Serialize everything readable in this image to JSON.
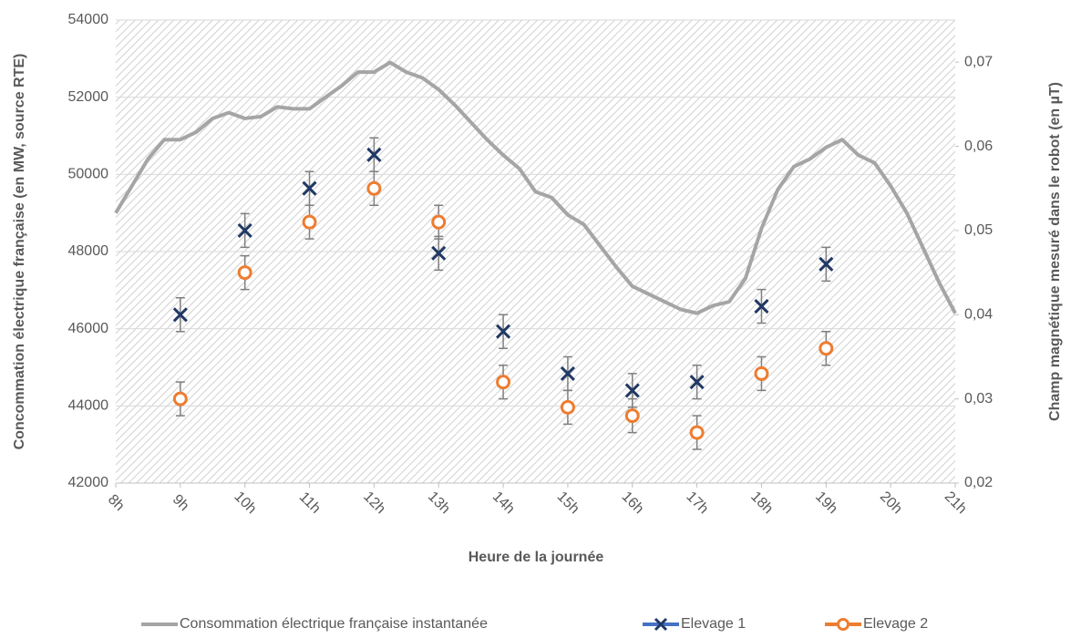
{
  "chart_data": {
    "type": "line_scatter",
    "xlabel": "Heure de la journée",
    "ylabel": "Concommation électrique française (en MW, source RTE)",
    "y2label": "Champ magnétique mesuré dans le robot (en µT)",
    "xlim": [
      8,
      21
    ],
    "xticks": [
      {
        "value": 8,
        "label": "8h"
      },
      {
        "value": 9,
        "label": "9h"
      },
      {
        "value": 10,
        "label": "10h"
      },
      {
        "value": 11,
        "label": "11h"
      },
      {
        "value": 12,
        "label": "12h"
      },
      {
        "value": 13,
        "label": "13h"
      },
      {
        "value": 14,
        "label": "14h"
      },
      {
        "value": 15,
        "label": "15h"
      },
      {
        "value": 16,
        "label": "16h"
      },
      {
        "value": 17,
        "label": "17h"
      },
      {
        "value": 18,
        "label": "18h"
      },
      {
        "value": 19,
        "label": "19h"
      },
      {
        "value": 20,
        "label": "20h"
      },
      {
        "value": 21,
        "label": "21h"
      }
    ],
    "ylim": [
      42000,
      54000
    ],
    "yticks": [
      42000,
      44000,
      46000,
      48000,
      50000,
      52000,
      54000
    ],
    "y2lim": [
      0.02,
      0.075
    ],
    "y2ticks": [
      {
        "value": 0.02,
        "label": "0,02"
      },
      {
        "value": 0.03,
        "label": "0,03"
      },
      {
        "value": 0.04,
        "label": "0,04"
      },
      {
        "value": 0.05,
        "label": "0,05"
      },
      {
        "value": 0.06,
        "label": "0,06"
      },
      {
        "value": 0.07,
        "label": "0,07"
      }
    ],
    "grid": true,
    "legend": "bottom",
    "series": [
      {
        "name": "Consommation électrique française instantanée",
        "color": "#a5a5a5",
        "kind": "line",
        "x": [
          8,
          8.25,
          8.5,
          8.75,
          9,
          9.25,
          9.5,
          9.75,
          10,
          10.25,
          10.5,
          10.75,
          11,
          11.25,
          11.5,
          11.75,
          12,
          12.25,
          12.5,
          12.75,
          13,
          13.25,
          13.5,
          13.75,
          14,
          14.25,
          14.5,
          14.75,
          15,
          15.25,
          15.5,
          15.75,
          16,
          16.25,
          16.5,
          16.75,
          17,
          17.25,
          17.5,
          17.75,
          18,
          18.25,
          18.5,
          18.75,
          19,
          19.25,
          19.5,
          19.75,
          20,
          20.25,
          20.5,
          20.75,
          21
        ],
        "values": [
          49000,
          49700,
          50400,
          50900,
          50900,
          51100,
          51450,
          51600,
          51450,
          51500,
          51750,
          51700,
          51700,
          52000,
          52300,
          52650,
          52650,
          52900,
          52650,
          52500,
          52200,
          51800,
          51350,
          50900,
          50500,
          50150,
          49550,
          49400,
          48950,
          48700,
          48150,
          47600,
          47100,
          46900,
          46700,
          46500,
          46400,
          46600,
          46700,
          47300,
          48600,
          49600,
          50200,
          50400,
          50700,
          50900,
          50500,
          50300,
          49700,
          49000,
          48100,
          47200,
          46400
        ]
      },
      {
        "name": "Elevage 1",
        "color": "#203864",
        "kind": "x",
        "axis": "y2",
        "x": [
          9,
          10,
          11,
          12,
          13,
          14,
          15,
          16,
          17,
          18,
          19
        ],
        "values": [
          0.04,
          0.05,
          0.055,
          0.059,
          0.0473,
          0.038,
          0.033,
          0.031,
          0.032,
          0.041,
          0.046
        ],
        "errors": [
          0.002,
          0.002,
          0.002,
          0.002,
          0.002,
          0.002,
          0.002,
          0.002,
          0.002,
          0.002,
          0.002
        ]
      },
      {
        "name": "Elevage 2",
        "color": "#ed7d31",
        "kind": "o",
        "axis": "y2",
        "x": [
          9,
          10,
          11,
          12,
          13,
          14,
          15,
          16,
          17,
          18,
          19
        ],
        "values": [
          0.03,
          0.045,
          0.051,
          0.055,
          0.051,
          0.032,
          0.029,
          0.028,
          0.026,
          0.033,
          0.036
        ],
        "errors": [
          0.002,
          0.002,
          0.002,
          0.002,
          0.002,
          0.002,
          0.002,
          0.002,
          0.002,
          0.002,
          0.002
        ]
      }
    ]
  }
}
